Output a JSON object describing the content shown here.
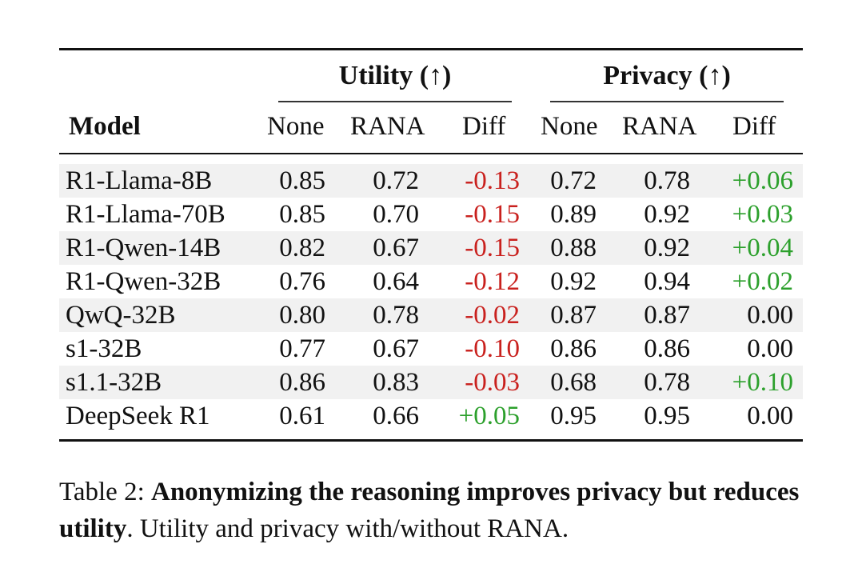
{
  "table": {
    "groups": {
      "utility": "Utility (↑)",
      "privacy": "Privacy (↑)"
    },
    "columns": {
      "model": "Model",
      "u_none": "None",
      "u_rana": "RANA",
      "u_diff": "Diff",
      "p_none": "None",
      "p_rana": "RANA",
      "p_diff": "Diff"
    },
    "rows": [
      {
        "model": "R1-Llama-8B",
        "u_none": "0.85",
        "u_rana": "0.72",
        "u_diff": "-0.13",
        "p_none": "0.72",
        "p_rana": "0.78",
        "p_diff": "+0.06"
      },
      {
        "model": "R1-Llama-70B",
        "u_none": "0.85",
        "u_rana": "0.70",
        "u_diff": "-0.15",
        "p_none": "0.89",
        "p_rana": "0.92",
        "p_diff": "+0.03"
      },
      {
        "model": "R1-Qwen-14B",
        "u_none": "0.82",
        "u_rana": "0.67",
        "u_diff": "-0.15",
        "p_none": "0.88",
        "p_rana": "0.92",
        "p_diff": "+0.04"
      },
      {
        "model": "R1-Qwen-32B",
        "u_none": "0.76",
        "u_rana": "0.64",
        "u_diff": "-0.12",
        "p_none": "0.92",
        "p_rana": "0.94",
        "p_diff": "+0.02"
      },
      {
        "model": "QwQ-32B",
        "u_none": "0.80",
        "u_rana": "0.78",
        "u_diff": "-0.02",
        "p_none": "0.87",
        "p_rana": "0.87",
        "p_diff": "0.00"
      },
      {
        "model": "s1-32B",
        "u_none": "0.77",
        "u_rana": "0.67",
        "u_diff": "-0.10",
        "p_none": "0.86",
        "p_rana": "0.86",
        "p_diff": "0.00"
      },
      {
        "model": "s1.1-32B",
        "u_none": "0.86",
        "u_rana": "0.83",
        "u_diff": "-0.03",
        "p_none": "0.68",
        "p_rana": "0.78",
        "p_diff": "+0.10"
      },
      {
        "model": "DeepSeek R1",
        "u_none": "0.61",
        "u_rana": "0.66",
        "u_diff": "+0.05",
        "p_none": "0.95",
        "p_rana": "0.95",
        "p_diff": "0.00"
      }
    ]
  },
  "caption": {
    "label": "Table 2: ",
    "bold": "Anonymizing the reasoning improves privacy but reduces utility",
    "period": ". ",
    "text_before": "Utility and privacy with/without ",
    "method": "RANA",
    "text_after": "."
  },
  "colors": {
    "negative": "#c9211e",
    "positive": "#2ca02c"
  }
}
